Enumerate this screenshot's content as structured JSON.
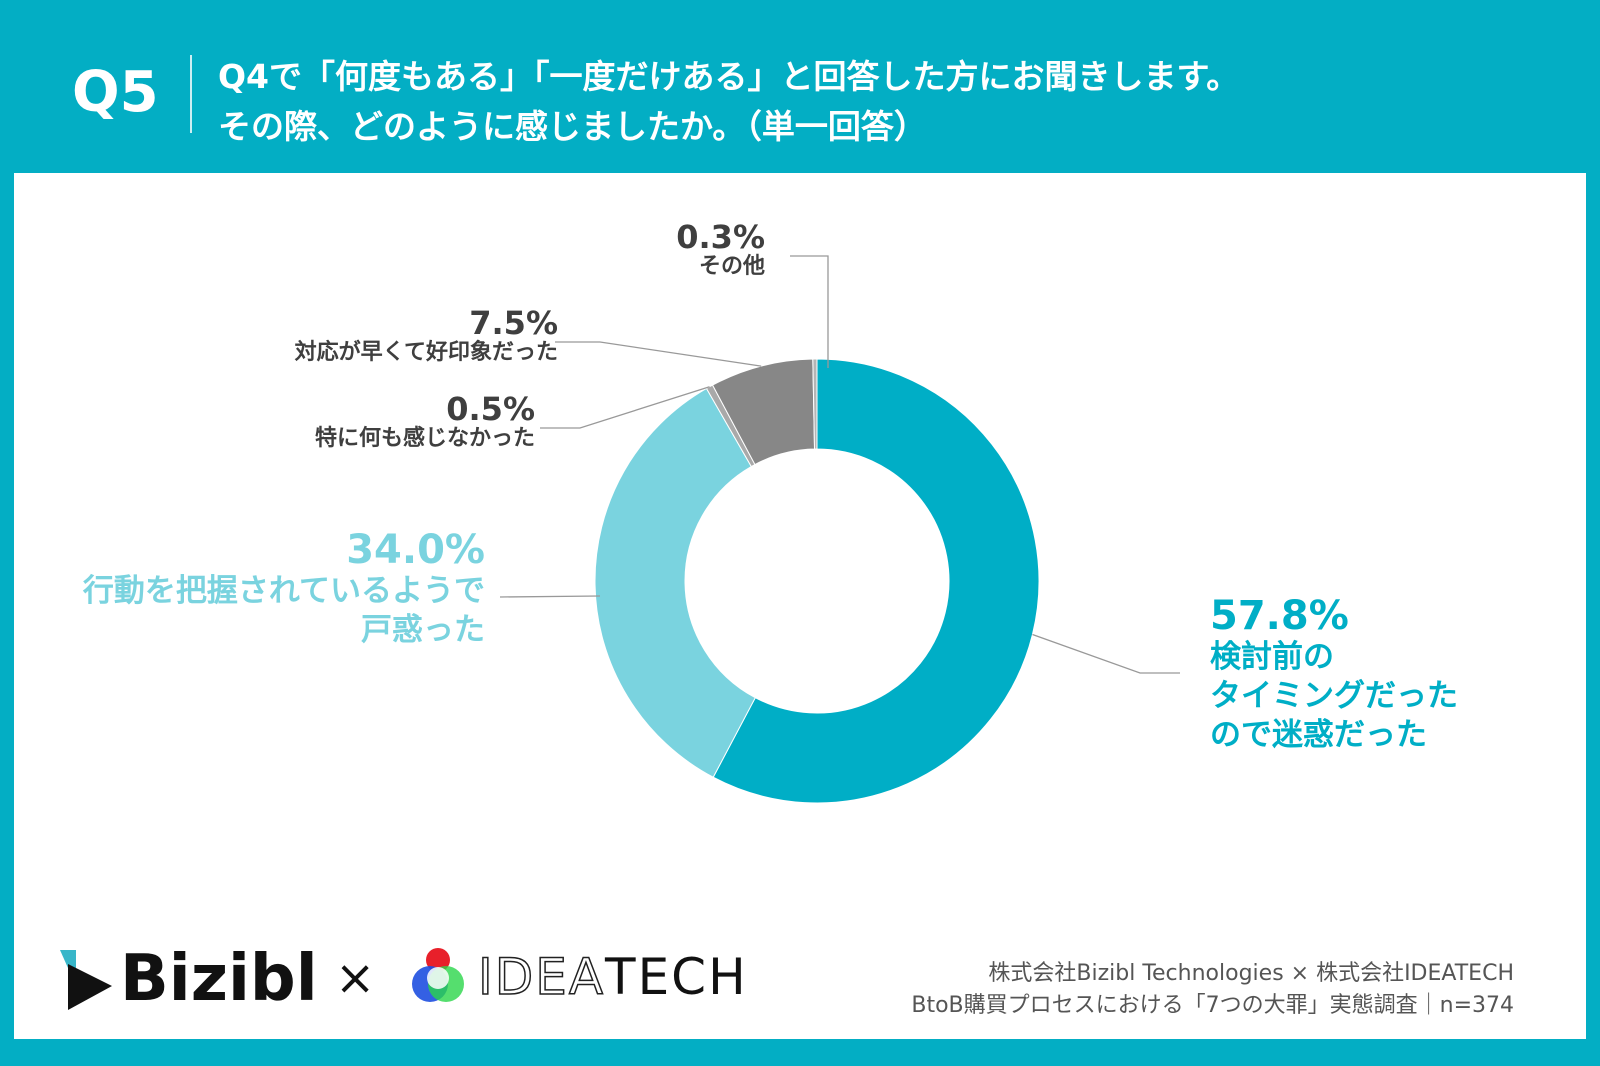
{
  "header": {
    "qnum": "Q5",
    "title_line1": "Q4で「何度もある」「一度だけある」と回答した方にお聞きします。",
    "title_line2": "その際、どのように感じましたか。（単一回答）"
  },
  "chart_data": {
    "type": "pie",
    "donut": true,
    "slices": [
      {
        "label": "検討前のタイミングだったので迷惑だった",
        "label_lines": [
          "検討前の",
          "タイミングだった",
          "ので迷惑だった"
        ],
        "value": 57.8,
        "pct": "57.8%",
        "color": "#00aec6"
      },
      {
        "label": "行動を把握されているようで戸惑った",
        "label_lines": [
          "行動を把握されているようで",
          "戸惑った"
        ],
        "value": 34.0,
        "pct": "34.0%",
        "color": "#7ad3df"
      },
      {
        "label": "特に何も感じなかった",
        "label_lines": [
          "特に何も感じなかった"
        ],
        "value": 0.5,
        "pct": "0.5%",
        "color": "#a9a9a9"
      },
      {
        "label": "対応が早くて好印象だった",
        "label_lines": [
          "対応が早くて好印象だった"
        ],
        "value": 7.5,
        "pct": "7.5%",
        "color": "#878787"
      },
      {
        "label": "その他",
        "label_lines": [
          "その他"
        ],
        "value": 0.3,
        "pct": "0.3%",
        "color": "#b5b5b5"
      }
    ]
  },
  "footer": {
    "logo1": "Bizibl",
    "times": "×",
    "logo2_outline": "IDEA",
    "logo2_solid": "TECH",
    "credit_line1": "株式会社Bizibl Technologies × 株式会社IDEATECH",
    "credit_line2": "BtoB購買プロセスにおける「7つの大罪」実態調査｜n=374"
  }
}
